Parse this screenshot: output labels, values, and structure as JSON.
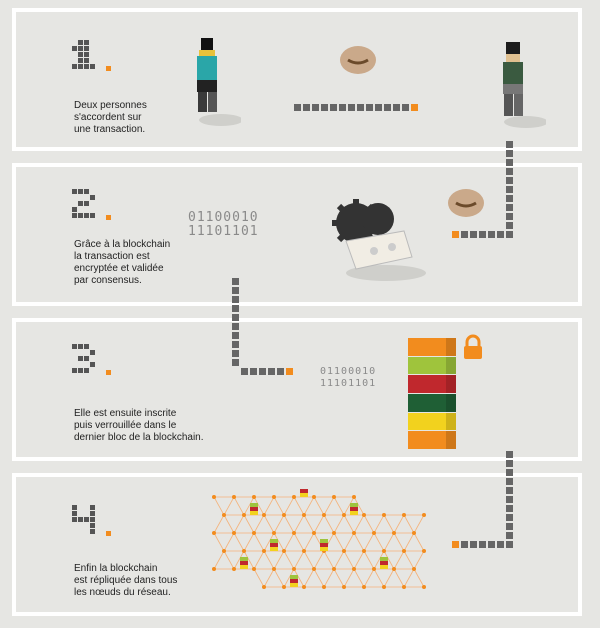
{
  "steps": [
    {
      "number": "1",
      "text": "Deux personnes\ns'accordent sur\nune transaction."
    },
    {
      "number": "2",
      "text": "Grâce à la blockchain\nla transaction est\nencryptée et validée\npar consensus."
    },
    {
      "number": "3",
      "text": "Elle est ensuite inscrite\npuis verrouillée dans le\ndernier bloc de la blockchain."
    },
    {
      "number": "4",
      "text": "Enfin la blockchain\nest répliquée dans tous\nles nœuds du réseau."
    }
  ],
  "binary": {
    "line1": "01100010",
    "line2": "11101101"
  },
  "colors": {
    "accent": "#f28c1e",
    "arrow": "#666666",
    "panel_border": "#ffffff",
    "background": "#e6e6e3"
  },
  "block_stack": [
    "#f28c1e",
    "#9fc43c",
    "#c0282d",
    "#1f5f35",
    "#f2d21e",
    "#f28c1e"
  ]
}
